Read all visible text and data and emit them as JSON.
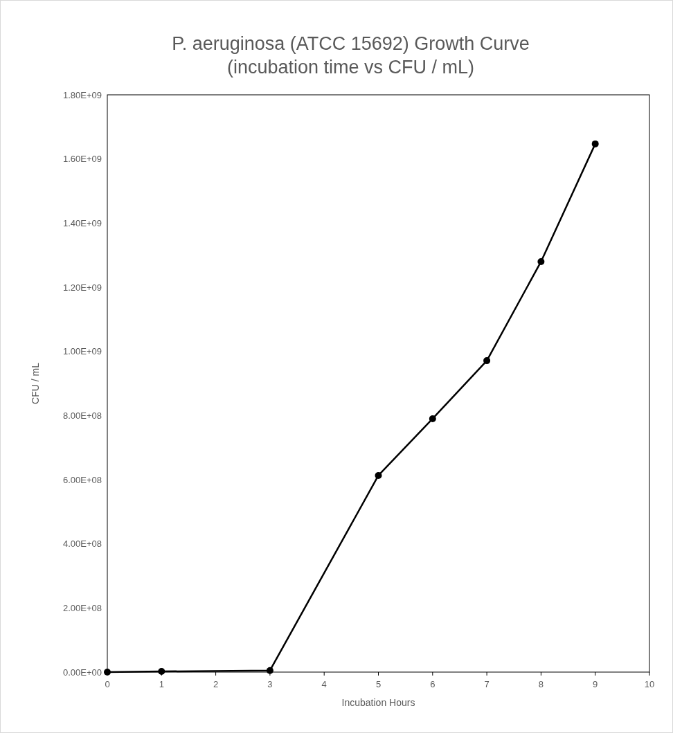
{
  "chart_data": {
    "type": "line",
    "title": "P. aeruginosa (ATCC 15692) Growth Curve\n(incubation time vs CFU / mL)",
    "xlabel": "Incubation Hours",
    "ylabel": "CFU / mL",
    "x": [
      0,
      1,
      3,
      5,
      6,
      7,
      8,
      9
    ],
    "series": [
      {
        "color": "#000000",
        "values": [
          0,
          2000000,
          5000000,
          613000000,
          790000000,
          971000000,
          1280000000,
          1647000000
        ]
      }
    ],
    "xlim": [
      0,
      10
    ],
    "xticks": [
      0,
      1,
      2,
      3,
      4,
      5,
      6,
      7,
      8,
      9,
      10
    ],
    "ylim": [
      0,
      1800000000
    ],
    "yticks": [
      {
        "value": 0,
        "label": "0.00E+00"
      },
      {
        "value": 200000000,
        "label": "2.00E+08"
      },
      {
        "value": 400000000,
        "label": "4.00E+08"
      },
      {
        "value": 600000000,
        "label": "6.00E+08"
      },
      {
        "value": 800000000,
        "label": "8.00E+08"
      },
      {
        "value": 1000000000,
        "label": "1.00E+09"
      },
      {
        "value": 1200000000,
        "label": "1.20E+09"
      },
      {
        "value": 1400000000,
        "label": "1.40E+09"
      },
      {
        "value": 1600000000,
        "label": "1.60E+09"
      },
      {
        "value": 1800000000,
        "label": "1.80E+09"
      }
    ],
    "marker": "circle",
    "line_style": "solid",
    "grid": false
  }
}
